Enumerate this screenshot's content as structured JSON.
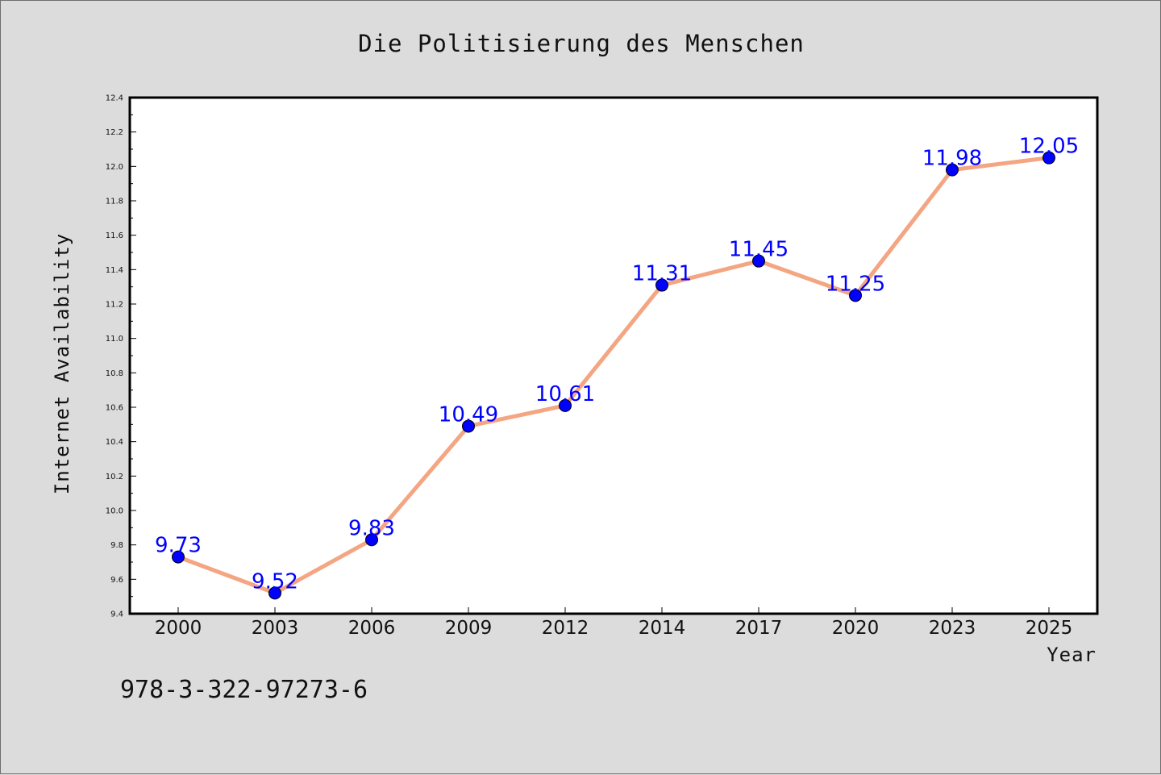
{
  "chart_data": {
    "type": "line",
    "title": "Die Politisierung des Menschen",
    "xlabel": "Year",
    "ylabel": "Internet Availability",
    "categories": [
      "2000",
      "2003",
      "2006",
      "2009",
      "2012",
      "2014",
      "2017",
      "2020",
      "2023",
      "2025"
    ],
    "series": [
      {
        "values": [
          9.73,
          9.52,
          9.83,
          10.49,
          10.61,
          11.31,
          11.45,
          11.25,
          11.98,
          12.05
        ],
        "data_labels": [
          "9.73",
          "9.52",
          "9.83",
          "10.49",
          "10.61",
          "11.31",
          "11.45",
          "11.25",
          "11.98",
          "12.05"
        ],
        "line_color": "#f4a582",
        "marker_color": "#0000ff"
      }
    ],
    "ylim": [
      9.4,
      12.4
    ],
    "yticks": [
      "9.4",
      "9.6",
      "9.8",
      "10.0",
      "10.2",
      "10.4",
      "10.6",
      "10.8",
      "11.0",
      "11.2",
      "11.4",
      "11.6",
      "11.8",
      "12.0",
      "12.2",
      "12.4"
    ],
    "grid": false,
    "label_color": "#0000ff"
  },
  "footnote": "978-3-322-97273-6",
  "colors": {
    "background": "#dcdcdc",
    "plot_background": "#ffffff"
  }
}
